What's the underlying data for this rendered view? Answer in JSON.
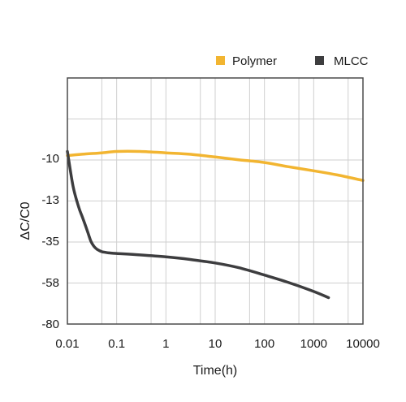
{
  "chart_data": {
    "type": "line",
    "xlabel": "Time(h)",
    "ylabel": "ΔC/C0",
    "x_scale": "log",
    "xlim": [
      0.01,
      10000
    ],
    "x_ticks": [
      "0.01",
      "0.1",
      "1",
      "10",
      "100",
      "1000",
      "10000"
    ],
    "y_ticks": [
      "-10",
      "-13",
      "-35",
      "-58",
      "-80"
    ],
    "grid": true,
    "legend_position": "top-right",
    "series": [
      {
        "name": "Polymer",
        "color": "#f2b531",
        "x": [
          0.01,
          0.02,
          0.05,
          0.1,
          0.3,
          1,
          3,
          10,
          30,
          100,
          300,
          1000,
          3000,
          10000
        ],
        "y": [
          -9.8,
          -9.7,
          -9.6,
          -9.5,
          -9.5,
          -9.6,
          -9.7,
          -9.9,
          -10.1,
          -10.3,
          -10.6,
          -10.9,
          -11.2,
          -11.6
        ]
      },
      {
        "name": "MLCC",
        "color": "#3d3d3f",
        "x": [
          0.01,
          0.013,
          0.017,
          0.02,
          0.025,
          0.03,
          0.035,
          0.04,
          0.05,
          0.07,
          0.1,
          0.3,
          1,
          3,
          10,
          30,
          100,
          300,
          1000,
          2000
        ],
        "y": [
          -9.5,
          -12,
          -17,
          -22,
          -29,
          -35,
          -38,
          -39.5,
          -40.8,
          -41.5,
          -41.8,
          -42.6,
          -43.7,
          -45.1,
          -47.1,
          -49.7,
          -53.8,
          -57.8,
          -62.7,
          -66
        ]
      }
    ]
  }
}
